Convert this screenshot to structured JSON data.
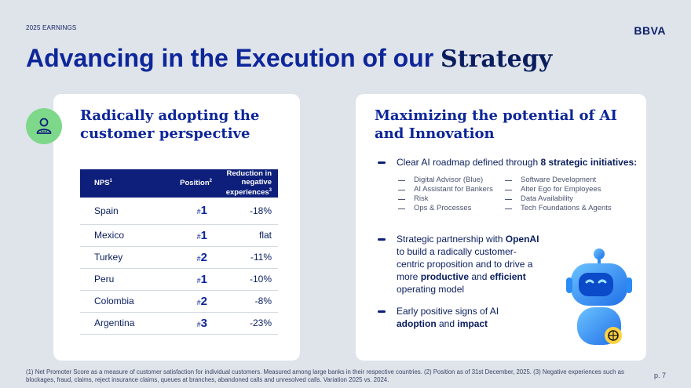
{
  "header": {
    "eyebrow": "2025 EARNINGS",
    "logo": "BBVA"
  },
  "title": {
    "prefix": "Advancing in the Execution of our ",
    "strong": "Strategy"
  },
  "left_card": {
    "heading": "Radically  adopting the customer perspective",
    "icon": "user-icon",
    "table": {
      "headers": {
        "nps": "NPS",
        "nps_sup": "1",
        "position": "Position",
        "position_sup": "2",
        "reduction": "Reduction in negative experiences",
        "reduction_sup": "3"
      },
      "hash": "#",
      "rows": [
        {
          "country": "Spain",
          "position": "1",
          "reduction": "-18%"
        },
        {
          "country": "Mexico",
          "position": "1",
          "reduction": "flat"
        },
        {
          "country": "Turkey",
          "position": "2",
          "reduction": "-11%"
        },
        {
          "country": "Peru",
          "position": "1",
          "reduction": "-10%"
        },
        {
          "country": "Colombia",
          "position": "2",
          "reduction": "-8%"
        },
        {
          "country": "Argentina",
          "position": "3",
          "reduction": "-23%"
        }
      ]
    }
  },
  "right_card": {
    "heading": "Maximizing the potential of  AI and Innovation",
    "bullet1": {
      "text": "Clear AI roadmap defined through ",
      "bold": "8 strategic initiatives:"
    },
    "initiatives": [
      "Digital Advisor (Blue)",
      "Software Development",
      "AI Assistant for Bankers",
      "Alter Ego for Employees",
      "Risk",
      "Data Availability",
      "Ops & Processes",
      "Tech Foundations & Agents"
    ],
    "bullet2": {
      "t1": "Strategic partnership with ",
      "b1": "OpenAI",
      "t2": " to build a radically customer-centric proposition and to drive a more ",
      "b2": "productive",
      "t3": " and ",
      "b3": "efficient",
      "t4": " operating model"
    },
    "bullet3": {
      "t1": "Early positive signs of AI ",
      "b1": "adoption",
      "t2": " and ",
      "b2": "impact"
    },
    "robot_icon": "openai-robot-icon"
  },
  "footer": {
    "footnote": "(1) Net Promoter Score as a measure of customer satisfaction for individual customers. Measured among large banks in their respective countries. (2) Position as of 31st December, 2025. (3) Negative experiences such as blockages, fraud, claims, reject insurance claims, queues at branches, abandoned calls and unresolved calls. Variation 2025 vs. 2024.",
    "page": "p. 7"
  },
  "colors": {
    "accent": "#0d2699",
    "navy": "#0a1e5e",
    "badge": "#7ed88a",
    "robot": "#2b8cf5"
  }
}
